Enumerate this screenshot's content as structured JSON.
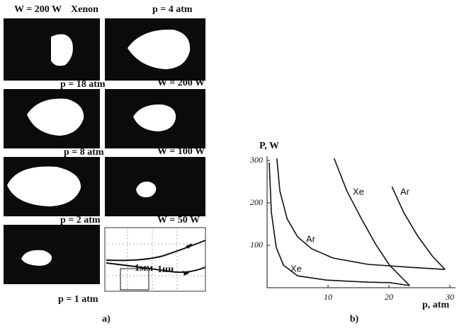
{
  "panel_a": {
    "labels": [
      "W = 200 W",
      "Xenon",
      "p = 4 atm",
      "p = 18 atm",
      "W = 200 W",
      "p = 8 atm",
      "W = 100 W",
      "p = 2 atm",
      "W = 50 W",
      "p = 1 atm"
    ],
    "inset_labels": [
      "1мм",
      "1нн"
    ],
    "caption": "a)"
  },
  "chart_data": {
    "type": "line",
    "caption": "b)",
    "ylabel": "P, W",
    "xlabel": "p, atm",
    "xlim": [
      0,
      30
    ],
    "ylim": [
      0,
      310
    ],
    "xticks": [
      10,
      20,
      30
    ],
    "yticks": [
      100,
      200,
      300
    ],
    "color": "#111",
    "series": [
      {
        "name": "Xe",
        "x": [
          0.35,
          0.7,
          1.5,
          2.7,
          5,
          9.7,
          16.6,
          20.1,
          23.4
        ],
        "values": [
          295,
          178,
          95,
          53,
          28,
          18,
          13,
          12,
          5
        ]
      },
      {
        "name": "Xe",
        "x": [
          11,
          13.1,
          15.5,
          17.8,
          20.1,
          23.4
        ],
        "values": [
          305,
          228,
          162,
          103,
          53,
          5
        ]
      },
      {
        "name": "Ar",
        "x": [
          1.6,
          2.1,
          3.3,
          5,
          7.3,
          10.8,
          16.6,
          23.6,
          29.2
        ],
        "values": [
          305,
          228,
          162,
          120,
          92,
          70,
          55,
          48,
          43
        ]
      },
      {
        "name": "Ar",
        "x": [
          20.5,
          22.4,
          24.8,
          27.1,
          29.2
        ],
        "values": [
          238,
          178,
          120,
          75,
          43
        ]
      }
    ]
  }
}
